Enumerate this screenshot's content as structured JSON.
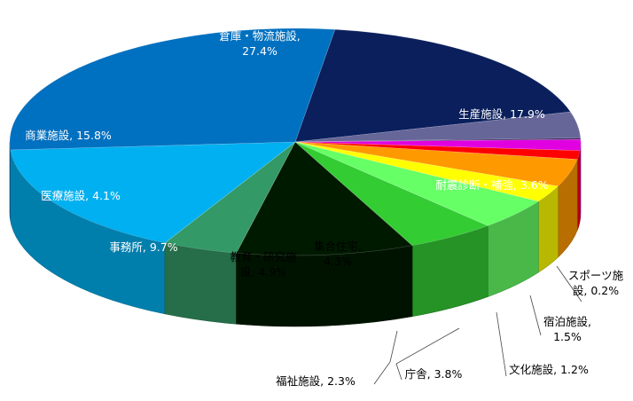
{
  "chart_data": {
    "type": "pie",
    "variant": "3d",
    "title": "",
    "legend": "none",
    "value_unit": "%",
    "slices": [
      {
        "name": "生産施設",
        "value": 17.9,
        "color": "#0a1f5c",
        "label": "生産施設, 17.9%"
      },
      {
        "name": "耐震診断・補強",
        "value": 3.6,
        "color": "#666699",
        "label": "耐震診断・補強, 3.6%"
      },
      {
        "name": "スポーツ施設",
        "value": 0.2,
        "color": "#3b1f5a",
        "label": "スポーツ施設, 0.2%"
      },
      {
        "name": "宿泊施設",
        "value": 1.5,
        "color": "#e000e0",
        "label": "宿泊施設, 1.5%"
      },
      {
        "name": "文化施設",
        "value": 1.2,
        "color": "#ff0000",
        "label": "文化施設, 1.2%"
      },
      {
        "name": "庁舎",
        "value": 3.8,
        "color": "#ff9900",
        "label": "庁舎, 3.8%"
      },
      {
        "name": "福祉施設",
        "value": 2.3,
        "color": "#ffff00",
        "label": "福祉施設, 2.3%"
      },
      {
        "name": "集合住宅",
        "value": 4.3,
        "color": "#66ff66",
        "label": "集合住宅, 4.3%"
      },
      {
        "name": "教育・研究施設",
        "value": 4.9,
        "color": "#33cc33",
        "label": "教育・研究施設, 4.9%"
      },
      {
        "name": "事務所",
        "value": 9.7,
        "color": "#001a00",
        "label": "事務所, 9.7%"
      },
      {
        "name": "医療施設",
        "value": 4.1,
        "color": "#339966",
        "label": "医療施設, 4.1%"
      },
      {
        "name": "商業施設",
        "value": 15.8,
        "color": "#00b0f0",
        "label": "商業施設, 15.8%"
      },
      {
        "name": "倉庫・物流施設",
        "value": 27.4,
        "color": "#0070c0",
        "label": "倉庫・物流施設, 27.4%"
      }
    ]
  }
}
